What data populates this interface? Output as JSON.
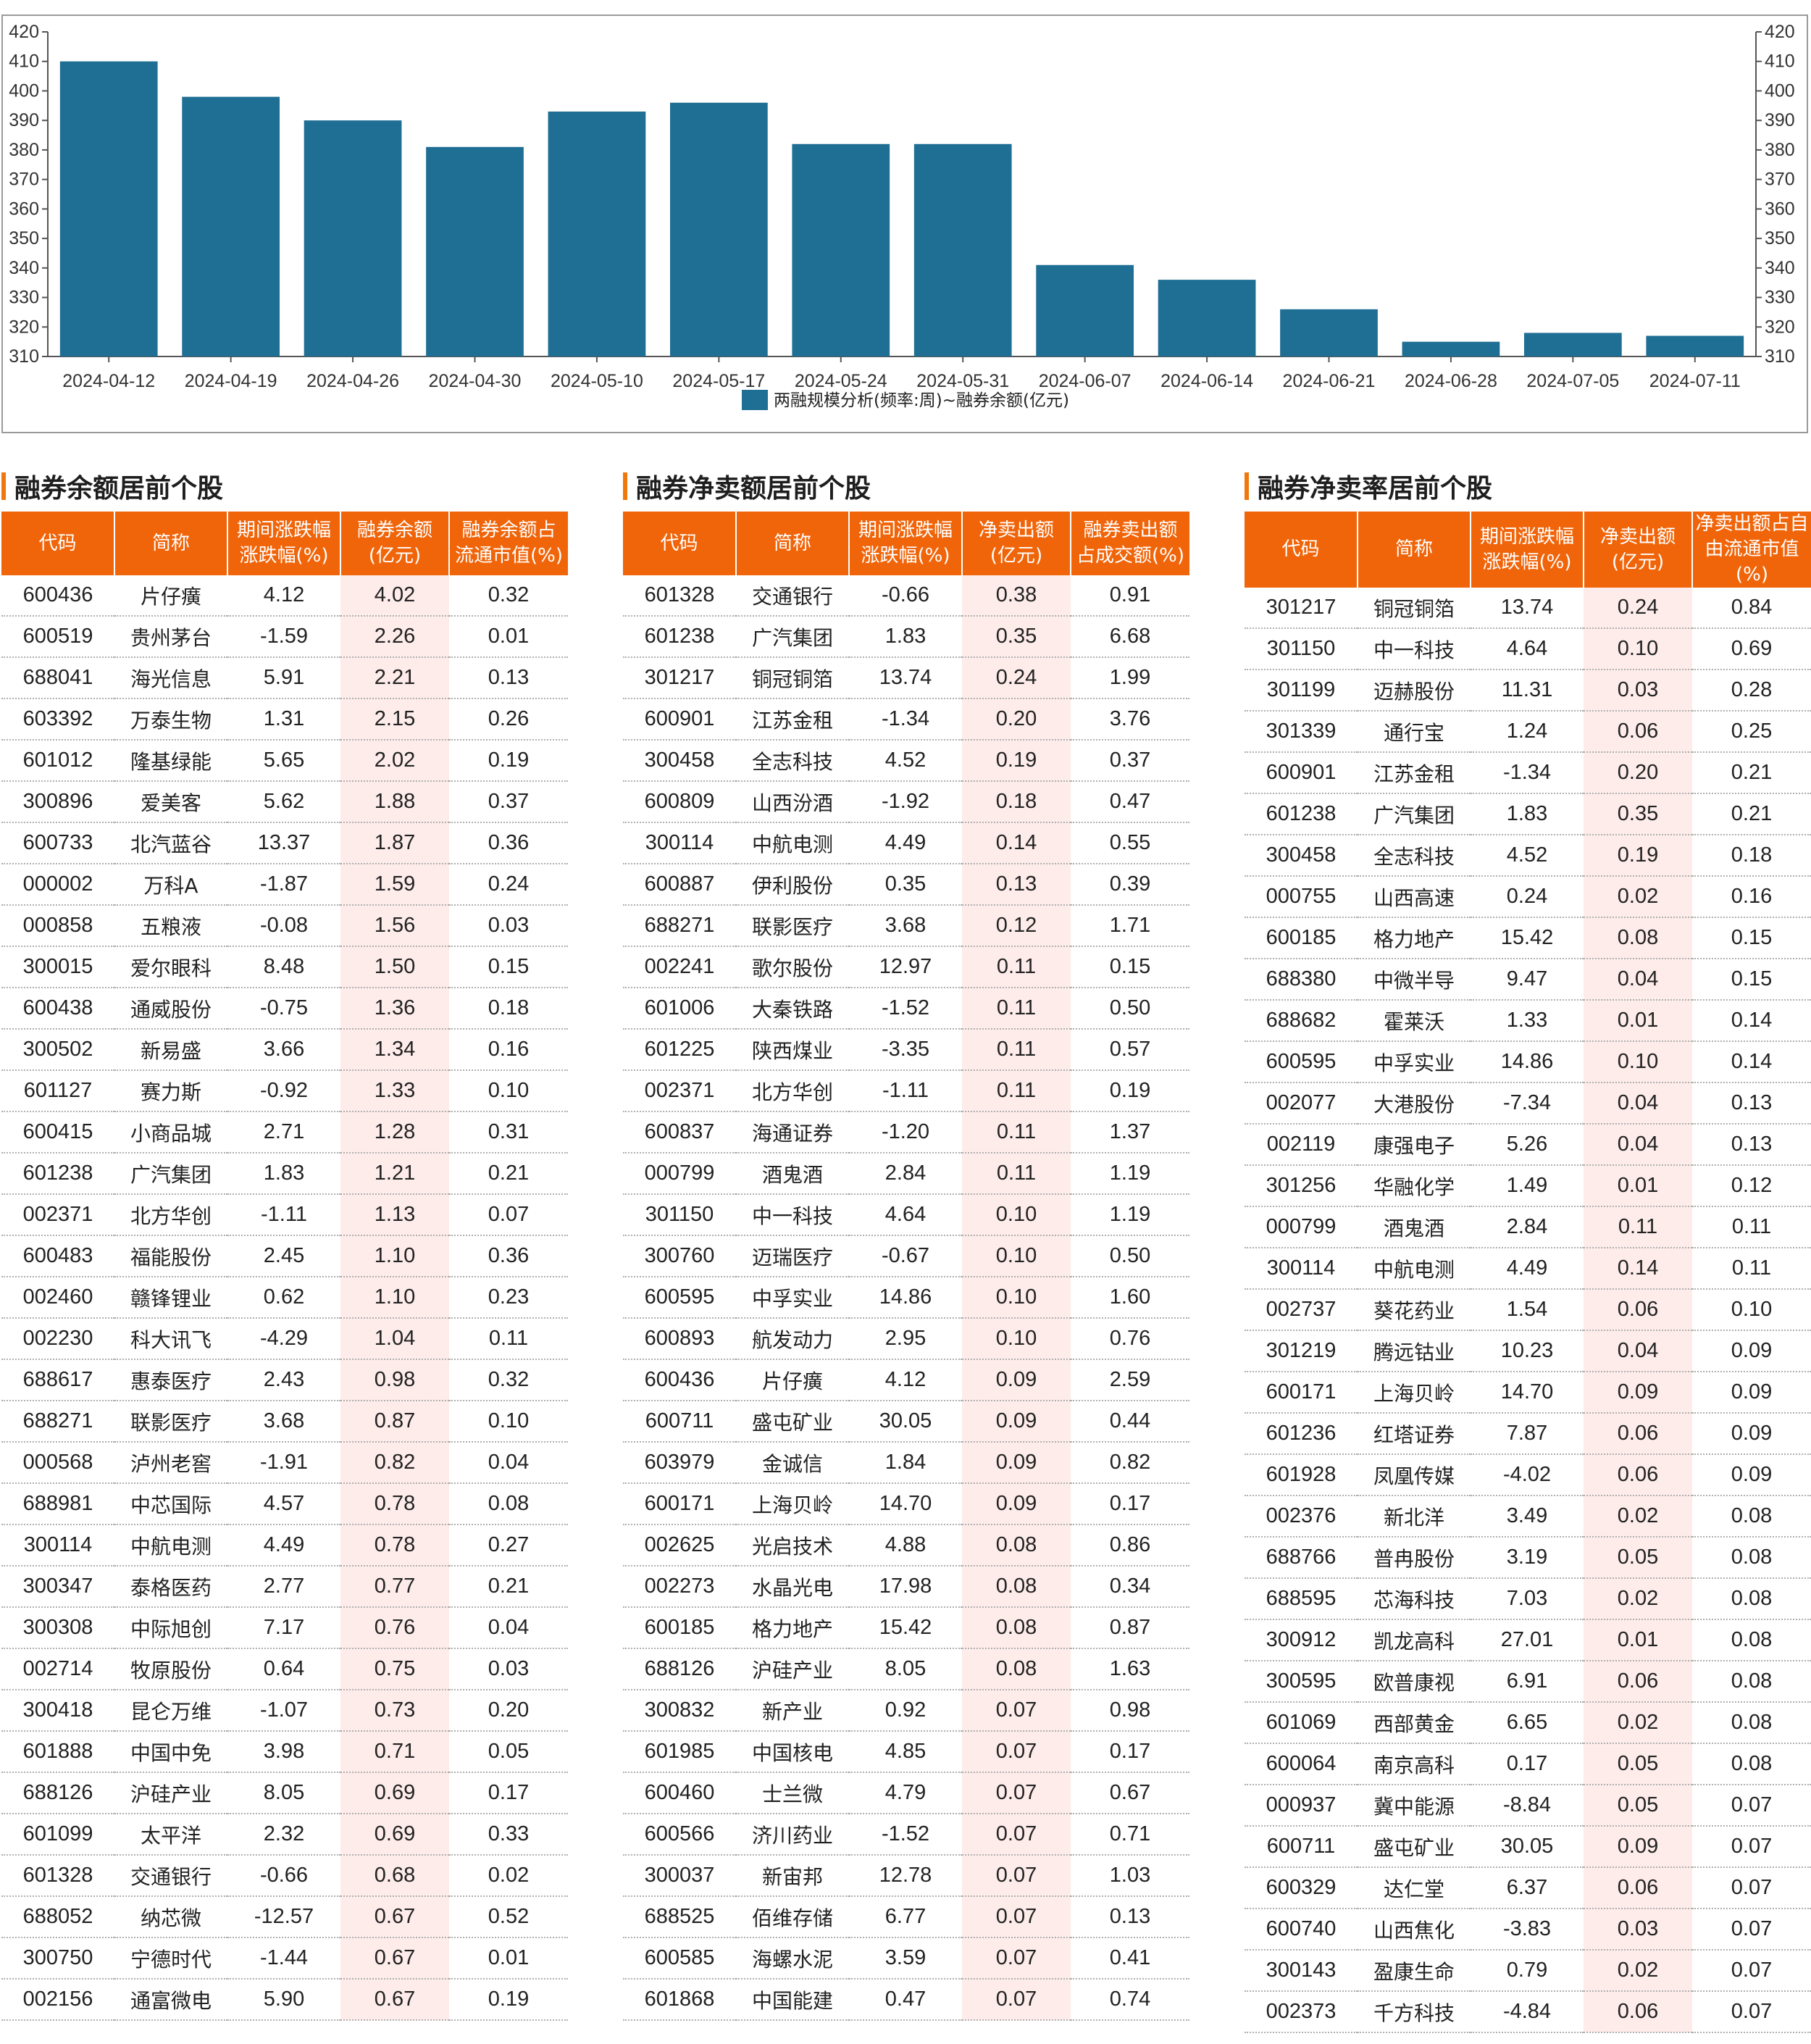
{
  "chart_data": {
    "type": "bar",
    "categories": [
      "2024-04-12",
      "2024-04-19",
      "2024-04-26",
      "2024-04-30",
      "2024-05-10",
      "2024-05-17",
      "2024-05-24",
      "2024-05-31",
      "2024-06-07",
      "2024-06-14",
      "2024-06-21",
      "2024-06-28",
      "2024-07-05",
      "2024-07-11"
    ],
    "series": [
      {
        "name": "两融规模分析(频率:周)~融券余额(亿元)",
        "values": [
          410,
          398,
          390,
          381,
          393,
          396,
          382,
          382,
          341,
          336,
          326,
          315,
          318,
          317
        ]
      }
    ],
    "ylim": [
      310,
      420
    ],
    "yticks": [
      310,
      320,
      330,
      340,
      350,
      360,
      370,
      380,
      390,
      400,
      410,
      420
    ],
    "bar_color": "#1f6e94",
    "legend_position": "bottom-center",
    "grid": false
  },
  "tables": [
    {
      "title": "融券余额居前个股",
      "headers": [
        "代码",
        "简称",
        "期间涨跌幅\n涨跌幅(%)",
        "融券余额\n(亿元)",
        "融券余额占\n流通市值(%)"
      ],
      "rows": [
        [
          "600436",
          "片仔癀",
          "4.12",
          "4.02",
          "0.32"
        ],
        [
          "600519",
          "贵州茅台",
          "-1.59",
          "2.26",
          "0.01"
        ],
        [
          "688041",
          "海光信息",
          "5.91",
          "2.21",
          "0.13"
        ],
        [
          "603392",
          "万泰生物",
          "1.31",
          "2.15",
          "0.26"
        ],
        [
          "601012",
          "隆基绿能",
          "5.65",
          "2.02",
          "0.19"
        ],
        [
          "300896",
          "爱美客",
          "5.62",
          "1.88",
          "0.37"
        ],
        [
          "600733",
          "北汽蓝谷",
          "13.37",
          "1.87",
          "0.36"
        ],
        [
          "000002",
          "万科A",
          "-1.87",
          "1.59",
          "0.24"
        ],
        [
          "000858",
          "五粮液",
          "-0.08",
          "1.56",
          "0.03"
        ],
        [
          "300015",
          "爱尔眼科",
          "8.48",
          "1.50",
          "0.15"
        ],
        [
          "600438",
          "通威股份",
          "-0.75",
          "1.36",
          "0.18"
        ],
        [
          "300502",
          "新易盛",
          "3.66",
          "1.34",
          "0.16"
        ],
        [
          "601127",
          "赛力斯",
          "-0.92",
          "1.33",
          "0.10"
        ],
        [
          "600415",
          "小商品城",
          "2.71",
          "1.28",
          "0.31"
        ],
        [
          "601238",
          "广汽集团",
          "1.83",
          "1.21",
          "0.21"
        ],
        [
          "002371",
          "北方华创",
          "-1.11",
          "1.13",
          "0.07"
        ],
        [
          "600483",
          "福能股份",
          "2.45",
          "1.10",
          "0.36"
        ],
        [
          "002460",
          "赣锋锂业",
          "0.62",
          "1.10",
          "0.23"
        ],
        [
          "002230",
          "科大讯飞",
          "-4.29",
          "1.04",
          "0.11"
        ],
        [
          "688617",
          "惠泰医疗",
          "2.43",
          "0.98",
          "0.32"
        ],
        [
          "688271",
          "联影医疗",
          "3.68",
          "0.87",
          "0.10"
        ],
        [
          "000568",
          "泸州老窖",
          "-1.91",
          "0.82",
          "0.04"
        ],
        [
          "688981",
          "中芯国际",
          "4.57",
          "0.78",
          "0.08"
        ],
        [
          "300114",
          "中航电测",
          "4.49",
          "0.78",
          "0.27"
        ],
        [
          "300347",
          "泰格医药",
          "2.77",
          "0.77",
          "0.21"
        ],
        [
          "300308",
          "中际旭创",
          "7.17",
          "0.76",
          "0.04"
        ],
        [
          "002714",
          "牧原股份",
          "0.64",
          "0.75",
          "0.03"
        ],
        [
          "300418",
          "昆仑万维",
          "-1.07",
          "0.73",
          "0.20"
        ],
        [
          "601888",
          "中国中免",
          "3.98",
          "0.71",
          "0.05"
        ],
        [
          "688126",
          "沪硅产业",
          "8.05",
          "0.69",
          "0.17"
        ],
        [
          "601099",
          "太平洋",
          "2.32",
          "0.69",
          "0.33"
        ],
        [
          "601328",
          "交通银行",
          "-0.66",
          "0.68",
          "0.02"
        ],
        [
          "688052",
          "纳芯微",
          "-12.57",
          "0.67",
          "0.52"
        ],
        [
          "300750",
          "宁德时代",
          "-1.44",
          "0.67",
          "0.01"
        ],
        [
          "002156",
          "通富微电",
          "5.90",
          "0.67",
          "0.19"
        ]
      ]
    },
    {
      "title": "融券净卖额居前个股",
      "headers": [
        "代码",
        "简称",
        "期间涨跌幅\n涨跌幅(%)",
        "净卖出额\n(亿元)",
        "融券卖出额\n占成交额(%)"
      ],
      "rows": [
        [
          "601328",
          "交通银行",
          "-0.66",
          "0.38",
          "0.91"
        ],
        [
          "601238",
          "广汽集团",
          "1.83",
          "0.35",
          "6.68"
        ],
        [
          "301217",
          "铜冠铜箔",
          "13.74",
          "0.24",
          "1.99"
        ],
        [
          "600901",
          "江苏金租",
          "-1.34",
          "0.20",
          "3.76"
        ],
        [
          "300458",
          "全志科技",
          "4.52",
          "0.19",
          "0.37"
        ],
        [
          "600809",
          "山西汾酒",
          "-1.92",
          "0.18",
          "0.47"
        ],
        [
          "300114",
          "中航电测",
          "4.49",
          "0.14",
          "0.55"
        ],
        [
          "600887",
          "伊利股份",
          "0.35",
          "0.13",
          "0.39"
        ],
        [
          "688271",
          "联影医疗",
          "3.68",
          "0.12",
          "1.71"
        ],
        [
          "002241",
          "歌尔股份",
          "12.97",
          "0.11",
          "0.15"
        ],
        [
          "601006",
          "大秦铁路",
          "-1.52",
          "0.11",
          "0.50"
        ],
        [
          "601225",
          "陕西煤业",
          "-3.35",
          "0.11",
          "0.57"
        ],
        [
          "002371",
          "北方华创",
          "-1.11",
          "0.11",
          "0.19"
        ],
        [
          "600837",
          "海通证券",
          "-1.20",
          "0.11",
          "1.37"
        ],
        [
          "000799",
          "酒鬼酒",
          "2.84",
          "0.11",
          "1.19"
        ],
        [
          "301150",
          "中一科技",
          "4.64",
          "0.10",
          "1.19"
        ],
        [
          "300760",
          "迈瑞医疗",
          "-0.67",
          "0.10",
          "0.50"
        ],
        [
          "600595",
          "中孚实业",
          "14.86",
          "0.10",
          "1.60"
        ],
        [
          "600893",
          "航发动力",
          "2.95",
          "0.10",
          "0.76"
        ],
        [
          "600436",
          "片仔癀",
          "4.12",
          "0.09",
          "2.59"
        ],
        [
          "600711",
          "盛屯矿业",
          "30.05",
          "0.09",
          "0.44"
        ],
        [
          "603979",
          "金诚信",
          "1.84",
          "0.09",
          "0.82"
        ],
        [
          "600171",
          "上海贝岭",
          "14.70",
          "0.09",
          "0.17"
        ],
        [
          "002625",
          "光启技术",
          "4.88",
          "0.08",
          "0.86"
        ],
        [
          "002273",
          "水晶光电",
          "17.98",
          "0.08",
          "0.34"
        ],
        [
          "600185",
          "格力地产",
          "15.42",
          "0.08",
          "0.87"
        ],
        [
          "688126",
          "沪硅产业",
          "8.05",
          "0.08",
          "1.63"
        ],
        [
          "300832",
          "新产业",
          "0.92",
          "0.07",
          "0.98"
        ],
        [
          "601985",
          "中国核电",
          "4.85",
          "0.07",
          "0.17"
        ],
        [
          "600460",
          "士兰微",
          "4.79",
          "0.07",
          "0.67"
        ],
        [
          "600566",
          "济川药业",
          "-1.52",
          "0.07",
          "0.71"
        ],
        [
          "300037",
          "新宙邦",
          "12.78",
          "0.07",
          "1.03"
        ],
        [
          "688525",
          "佰维存储",
          "6.77",
          "0.07",
          "0.13"
        ],
        [
          "600585",
          "海螺水泥",
          "3.59",
          "0.07",
          "0.41"
        ],
        [
          "601868",
          "中国能建",
          "0.47",
          "0.07",
          "0.74"
        ]
      ]
    },
    {
      "title": "融券净卖率居前个股",
      "headers": [
        "代码",
        "简称",
        "期间涨跌幅\n涨跌幅(%)",
        "净卖出额\n(亿元)",
        "净卖出额占自\n由流通市值(%)"
      ],
      "rows": [
        [
          "301217",
          "铜冠铜箔",
          "13.74",
          "0.24",
          "0.84"
        ],
        [
          "301150",
          "中一科技",
          "4.64",
          "0.10",
          "0.69"
        ],
        [
          "301199",
          "迈赫股份",
          "11.31",
          "0.03",
          "0.28"
        ],
        [
          "301339",
          "通行宝",
          "1.24",
          "0.06",
          "0.25"
        ],
        [
          "600901",
          "江苏金租",
          "-1.34",
          "0.20",
          "0.21"
        ],
        [
          "601238",
          "广汽集团",
          "1.83",
          "0.35",
          "0.21"
        ],
        [
          "300458",
          "全志科技",
          "4.52",
          "0.19",
          "0.18"
        ],
        [
          "000755",
          "山西高速",
          "0.24",
          "0.02",
          "0.16"
        ],
        [
          "600185",
          "格力地产",
          "15.42",
          "0.08",
          "0.15"
        ],
        [
          "688380",
          "中微半导",
          "9.47",
          "0.04",
          "0.15"
        ],
        [
          "688682",
          "霍莱沃",
          "1.33",
          "0.01",
          "0.14"
        ],
        [
          "600595",
          "中孚实业",
          "14.86",
          "0.10",
          "0.14"
        ],
        [
          "002077",
          "大港股份",
          "-7.34",
          "0.04",
          "0.13"
        ],
        [
          "002119",
          "康强电子",
          "5.26",
          "0.04",
          "0.13"
        ],
        [
          "301256",
          "华融化学",
          "1.49",
          "0.01",
          "0.12"
        ],
        [
          "000799",
          "酒鬼酒",
          "2.84",
          "0.11",
          "0.11"
        ],
        [
          "300114",
          "中航电测",
          "4.49",
          "0.14",
          "0.11"
        ],
        [
          "002737",
          "葵花药业",
          "1.54",
          "0.06",
          "0.10"
        ],
        [
          "301219",
          "腾远钴业",
          "10.23",
          "0.04",
          "0.09"
        ],
        [
          "600171",
          "上海贝岭",
          "14.70",
          "0.09",
          "0.09"
        ],
        [
          "601236",
          "红塔证券",
          "7.87",
          "0.06",
          "0.09"
        ],
        [
          "601928",
          "凤凰传媒",
          "-4.02",
          "0.06",
          "0.09"
        ],
        [
          "002376",
          "新北洋",
          "3.49",
          "0.02",
          "0.08"
        ],
        [
          "688766",
          "普冉股份",
          "3.19",
          "0.05",
          "0.08"
        ],
        [
          "688595",
          "芯海科技",
          "7.03",
          "0.02",
          "0.08"
        ],
        [
          "300912",
          "凯龙高科",
          "27.01",
          "0.01",
          "0.08"
        ],
        [
          "300595",
          "欧普康视",
          "6.91",
          "0.06",
          "0.08"
        ],
        [
          "601069",
          "西部黄金",
          "6.65",
          "0.02",
          "0.08"
        ],
        [
          "600064",
          "南京高科",
          "0.17",
          "0.05",
          "0.08"
        ],
        [
          "000937",
          "冀中能源",
          "-8.84",
          "0.05",
          "0.07"
        ],
        [
          "600711",
          "盛屯矿业",
          "30.05",
          "0.09",
          "0.07"
        ],
        [
          "600329",
          "达仁堂",
          "6.37",
          "0.06",
          "0.07"
        ],
        [
          "600740",
          "山西焦化",
          "-3.83",
          "0.03",
          "0.07"
        ],
        [
          "300143",
          "盈康生命",
          "0.79",
          "0.02",
          "0.07"
        ],
        [
          "002373",
          "千方科技",
          "-4.84",
          "0.06",
          "0.07"
        ]
      ]
    }
  ]
}
